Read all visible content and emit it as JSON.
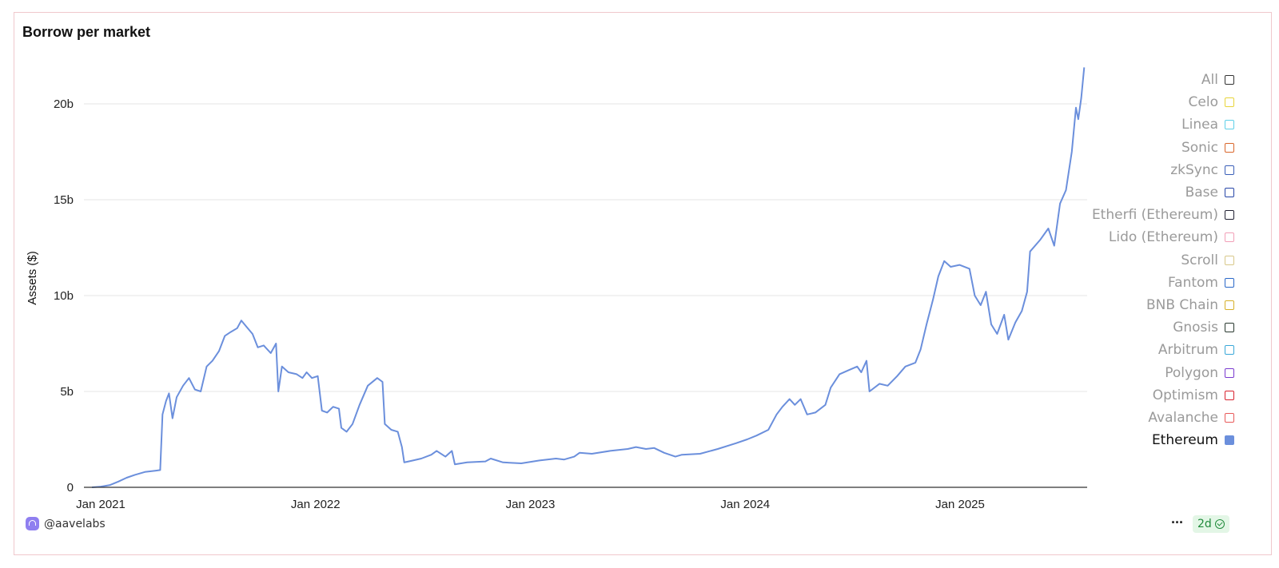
{
  "chart_data": {
    "type": "line",
    "title": "Borrow per market",
    "xlabel": "",
    "ylabel": "Assets ($)",
    "ylim": [
      0,
      22
    ],
    "y_unit": "billions",
    "y_ticks": [
      {
        "value": 0,
        "label": "0"
      },
      {
        "value": 5,
        "label": "5b"
      },
      {
        "value": 10,
        "label": "10b"
      },
      {
        "value": 15,
        "label": "15b"
      },
      {
        "value": 20,
        "label": "20b"
      }
    ],
    "x_ticks": [
      "Jan 2021",
      "Jan 2022",
      "Jan 2023",
      "Jan 2024",
      "Jan 2025"
    ],
    "grid": "horizontal",
    "legend_position": "right",
    "legend": [
      "All",
      "Celo",
      "Linea",
      "Sonic",
      "zkSync",
      "Base",
      "Etherfi (Ethereum)",
      "Lido (Ethereum)",
      "Scroll",
      "Fantom",
      "BNB Chain",
      "Gnosis",
      "Arbitrum",
      "Polygon",
      "Optimism",
      "Avalanche",
      "Ethereum"
    ],
    "series": [
      {
        "name": "Ethereum",
        "color": "#6b8fdc",
        "points": [
          [
            "2021-01-01",
            0
          ],
          [
            "2021-01-15",
            0.03
          ],
          [
            "2021-02-01",
            0.12
          ],
          [
            "2021-02-15",
            0.3
          ],
          [
            "2021-03-01",
            0.5
          ],
          [
            "2021-03-15",
            0.65
          ],
          [
            "2021-04-01",
            0.8
          ],
          [
            "2021-04-20",
            0.87
          ],
          [
            "2021-04-27",
            0.9
          ],
          [
            "2021-05-01",
            3.8
          ],
          [
            "2021-05-07",
            4.5
          ],
          [
            "2021-05-12",
            4.9
          ],
          [
            "2021-05-18",
            3.6
          ],
          [
            "2021-05-25",
            4.7
          ],
          [
            "2021-06-05",
            5.3
          ],
          [
            "2021-06-15",
            5.7
          ],
          [
            "2021-06-25",
            5.1
          ],
          [
            "2021-07-05",
            5.0
          ],
          [
            "2021-07-15",
            6.3
          ],
          [
            "2021-07-25",
            6.6
          ],
          [
            "2021-08-05",
            7.1
          ],
          [
            "2021-08-15",
            7.9
          ],
          [
            "2021-08-25",
            8.1
          ],
          [
            "2021-09-05",
            8.3
          ],
          [
            "2021-09-12",
            8.7
          ],
          [
            "2021-09-20",
            8.4
          ],
          [
            "2021-10-01",
            8.0
          ],
          [
            "2021-10-10",
            7.3
          ],
          [
            "2021-10-20",
            7.4
          ],
          [
            "2021-11-01",
            7.0
          ],
          [
            "2021-11-10",
            7.5
          ],
          [
            "2021-11-14",
            5.0
          ],
          [
            "2021-11-20",
            6.3
          ],
          [
            "2021-12-01",
            6.0
          ],
          [
            "2021-12-15",
            5.9
          ],
          [
            "2021-12-25",
            5.7
          ],
          [
            "2022-01-01",
            6.0
          ],
          [
            "2022-01-10",
            5.7
          ],
          [
            "2022-01-20",
            5.8
          ],
          [
            "2022-01-27",
            4.0
          ],
          [
            "2022-02-05",
            3.9
          ],
          [
            "2022-02-15",
            4.2
          ],
          [
            "2022-02-25",
            4.1
          ],
          [
            "2022-03-01",
            3.1
          ],
          [
            "2022-03-10",
            2.9
          ],
          [
            "2022-03-20",
            3.3
          ],
          [
            "2022-04-01",
            4.3
          ],
          [
            "2022-04-15",
            5.3
          ],
          [
            "2022-05-01",
            5.7
          ],
          [
            "2022-05-10",
            5.5
          ],
          [
            "2022-05-14",
            3.3
          ],
          [
            "2022-05-25",
            3.0
          ],
          [
            "2022-06-05",
            2.9
          ],
          [
            "2022-06-12",
            2.1
          ],
          [
            "2022-06-16",
            1.3
          ],
          [
            "2022-07-01",
            1.4
          ],
          [
            "2022-07-15",
            1.5
          ],
          [
            "2022-08-01",
            1.7
          ],
          [
            "2022-08-10",
            1.9
          ],
          [
            "2022-08-25",
            1.6
          ],
          [
            "2022-09-05",
            1.9
          ],
          [
            "2022-09-10",
            1.2
          ],
          [
            "2022-10-01",
            1.3
          ],
          [
            "2022-11-01",
            1.35
          ],
          [
            "2022-11-10",
            1.5
          ],
          [
            "2022-12-01",
            1.3
          ],
          [
            "2023-01-01",
            1.25
          ],
          [
            "2023-02-01",
            1.4
          ],
          [
            "2023-03-01",
            1.5
          ],
          [
            "2023-03-15",
            1.45
          ],
          [
            "2023-04-01",
            1.6
          ],
          [
            "2023-04-10",
            1.8
          ],
          [
            "2023-05-01",
            1.75
          ],
          [
            "2023-06-01",
            1.9
          ],
          [
            "2023-07-01",
            2.0
          ],
          [
            "2023-07-15",
            2.1
          ],
          [
            "2023-08-01",
            2.0
          ],
          [
            "2023-08-15",
            2.05
          ],
          [
            "2023-09-01",
            1.8
          ],
          [
            "2023-09-20",
            1.6
          ],
          [
            "2023-10-01",
            1.7
          ],
          [
            "2023-11-01",
            1.75
          ],
          [
            "2023-12-01",
            2.0
          ],
          [
            "2024-01-01",
            2.3
          ],
          [
            "2024-01-20",
            2.5
          ],
          [
            "2024-02-05",
            2.7
          ],
          [
            "2024-02-25",
            3.0
          ],
          [
            "2024-03-10",
            3.8
          ],
          [
            "2024-03-20",
            4.2
          ],
          [
            "2024-04-01",
            4.6
          ],
          [
            "2024-04-10",
            4.3
          ],
          [
            "2024-04-20",
            4.6
          ],
          [
            "2024-05-01",
            3.8
          ],
          [
            "2024-05-15",
            3.9
          ],
          [
            "2024-06-01",
            4.3
          ],
          [
            "2024-06-10",
            5.2
          ],
          [
            "2024-06-25",
            5.9
          ],
          [
            "2024-07-10",
            6.1
          ],
          [
            "2024-07-25",
            6.3
          ],
          [
            "2024-08-01",
            6.0
          ],
          [
            "2024-08-10",
            6.6
          ],
          [
            "2024-08-15",
            5.0
          ],
          [
            "2024-09-01",
            5.4
          ],
          [
            "2024-09-15",
            5.3
          ],
          [
            "2024-10-01",
            5.8
          ],
          [
            "2024-10-15",
            6.3
          ],
          [
            "2024-11-01",
            6.5
          ],
          [
            "2024-11-10",
            7.2
          ],
          [
            "2024-11-20",
            8.5
          ],
          [
            "2024-12-01",
            9.8
          ],
          [
            "2024-12-10",
            11.0
          ],
          [
            "2024-12-20",
            11.8
          ],
          [
            "2024-12-31",
            11.5
          ],
          [
            "2025-01-15",
            11.6
          ],
          [
            "2025-02-01",
            11.4
          ],
          [
            "2025-02-10",
            10.0
          ],
          [
            "2025-02-20",
            9.5
          ],
          [
            "2025-03-01",
            10.2
          ],
          [
            "2025-03-10",
            8.5
          ],
          [
            "2025-03-20",
            8.0
          ],
          [
            "2025-04-01",
            9.0
          ],
          [
            "2025-04-08",
            7.7
          ],
          [
            "2025-04-20",
            8.6
          ],
          [
            "2025-05-01",
            9.2
          ],
          [
            "2025-05-10",
            10.2
          ],
          [
            "2025-05-15",
            12.3
          ],
          [
            "2025-06-01",
            12.9
          ],
          [
            "2025-06-15",
            13.5
          ],
          [
            "2025-06-25",
            12.6
          ],
          [
            "2025-07-05",
            14.8
          ],
          [
            "2025-07-15",
            15.5
          ],
          [
            "2025-07-25",
            17.5
          ],
          [
            "2025-08-01",
            19.8
          ],
          [
            "2025-08-05",
            19.2
          ],
          [
            "2025-08-10",
            20.3
          ],
          [
            "2025-08-15",
            21.9
          ]
        ]
      }
    ]
  },
  "legend_items": [
    {
      "label": "All",
      "color": "#333333",
      "active": false
    },
    {
      "label": "Celo",
      "color": "#e8d53a",
      "active": false
    },
    {
      "label": "Linea",
      "color": "#5fd0e8",
      "active": false
    },
    {
      "label": "Sonic",
      "color": "#d9672c",
      "active": false
    },
    {
      "label": "zkSync",
      "color": "#3a5fb8",
      "active": false
    },
    {
      "label": "Base",
      "color": "#2746a8",
      "active": false
    },
    {
      "label": "Etherfi (Ethereum)",
      "color": "#222233",
      "active": false
    },
    {
      "label": "Lido (Ethereum)",
      "color": "#f2a0b8",
      "active": false
    },
    {
      "label": "Scroll",
      "color": "#d8c88a",
      "active": false
    },
    {
      "label": "Fantom",
      "color": "#2a68c8",
      "active": false
    },
    {
      "label": "BNB Chain",
      "color": "#d6b02a",
      "active": false
    },
    {
      "label": "Gnosis",
      "color": "#2a3a30",
      "active": false
    },
    {
      "label": "Arbitrum",
      "color": "#3aa8d8",
      "active": false
    },
    {
      "label": "Polygon",
      "color": "#7a3ad0",
      "active": false
    },
    {
      "label": "Optimism",
      "color": "#d8232f",
      "active": false
    },
    {
      "label": "Avalanche",
      "color": "#e85a5a",
      "active": false
    },
    {
      "label": "Ethereum",
      "color": "#6b8fdc",
      "active": true
    }
  ],
  "footer": {
    "handle": "@aavelabs",
    "more_label": "···",
    "badge_label": "2d"
  }
}
